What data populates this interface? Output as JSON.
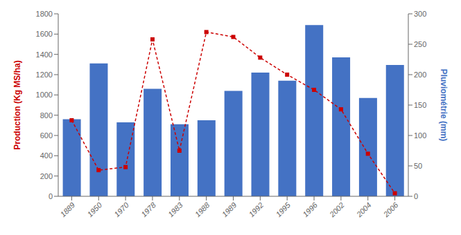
{
  "chart_data": {
    "type": "bar",
    "categories": [
      "1889",
      "1950",
      "1970",
      "1978",
      "1983",
      "1988",
      "1989",
      "1992",
      "1995",
      "1996",
      "2002",
      "2004",
      "2006"
    ],
    "ylabel": "Production (Kg MS/ha)",
    "y2label": "Pluviométrie (mm)",
    "ylim": [
      0,
      1800
    ],
    "yticks": [
      0,
      200,
      400,
      600,
      800,
      1000,
      1200,
      1400,
      1600,
      1800
    ],
    "y2lim": [
      0,
      300
    ],
    "y2ticks": [
      0,
      50,
      100,
      150,
      200,
      250,
      300
    ],
    "grid": false,
    "series": [
      {
        "type": "bar",
        "color": "#4472C4",
        "values": [
          760,
          1310,
          730,
          1060,
          710,
          750,
          1040,
          1220,
          1140,
          1690,
          1370,
          970,
          1295
        ]
      },
      {
        "type": "line",
        "axis": "y2",
        "color": "#CC0000",
        "marker": "square",
        "line_style": "dashed",
        "values": [
          125,
          43,
          48,
          258,
          75,
          270,
          262,
          228,
          200,
          175,
          143,
          70,
          5
        ]
      }
    ]
  }
}
